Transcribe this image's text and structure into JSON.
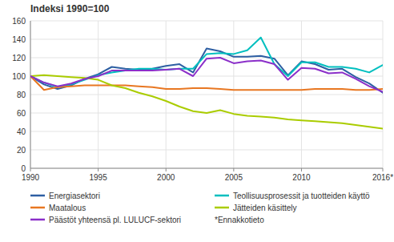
{
  "chart_data": {
    "type": "line",
    "title": "Indeksi 1990=100",
    "x": [
      1990,
      1991,
      1992,
      1993,
      1994,
      1995,
      1996,
      1997,
      1998,
      1999,
      2000,
      2001,
      2002,
      2003,
      2004,
      2005,
      2006,
      2007,
      2008,
      2009,
      2010,
      2011,
      2012,
      2013,
      2014,
      2015,
      2016
    ],
    "series": [
      {
        "name": "Energiasektori",
        "color": "#2E5FA3",
        "values": [
          100,
          91,
          86,
          90,
          97,
          102,
          110,
          108,
          107,
          108,
          111,
          113,
          104,
          130,
          127,
          121,
          121,
          122,
          119,
          101,
          116,
          113,
          107,
          108,
          99,
          92,
          82
        ]
      },
      {
        "name": "Teollisuusprosessit ja tuotteiden käyttö",
        "color": "#00BFBF",
        "values": [
          100,
          93,
          88,
          91,
          96,
          101,
          104,
          106,
          108,
          108,
          107,
          108,
          108,
          124,
          125,
          124,
          128,
          142,
          113,
          100,
          115,
          115,
          110,
          110,
          108,
          104,
          112
        ]
      },
      {
        "name": "Maatalous",
        "color": "#E87722",
        "values": [
          100,
          85,
          88,
          89,
          90,
          90,
          90,
          90,
          89,
          88,
          86,
          86,
          87,
          87,
          86,
          85,
          85,
          85,
          85,
          85,
          85,
          86,
          86,
          86,
          85,
          85,
          86
        ]
      },
      {
        "name": "Jätteiden käsittely",
        "color": "#AACC00",
        "values": [
          100,
          101,
          100,
          99,
          98,
          96,
          90,
          87,
          82,
          78,
          73,
          67,
          62,
          60,
          63,
          59,
          57,
          56,
          55,
          53,
          52,
          51,
          50,
          49,
          47,
          45,
          43
        ]
      },
      {
        "name": "Päästöt yhteensä pl. LULUCF-sektori",
        "color": "#8B2FC9",
        "values": [
          100,
          93,
          89,
          92,
          97,
          100,
          106,
          106,
          106,
          106,
          107,
          108,
          100,
          119,
          120,
          114,
          116,
          117,
          113,
          96,
          109,
          108,
          103,
          104,
          97,
          89,
          83
        ]
      }
    ],
    "xlim": [
      1990,
      2016
    ],
    "xticks": [
      1990,
      1995,
      2000,
      2005,
      2010,
      {
        "value": 2016,
        "label": "2016*"
      }
    ],
    "ylim": [
      0,
      160
    ],
    "yticks": [
      0,
      20,
      40,
      60,
      80,
      100,
      120,
      140,
      160
    ],
    "grid": true,
    "legend": "bottom",
    "annotation": "*Ennakkotieto"
  }
}
